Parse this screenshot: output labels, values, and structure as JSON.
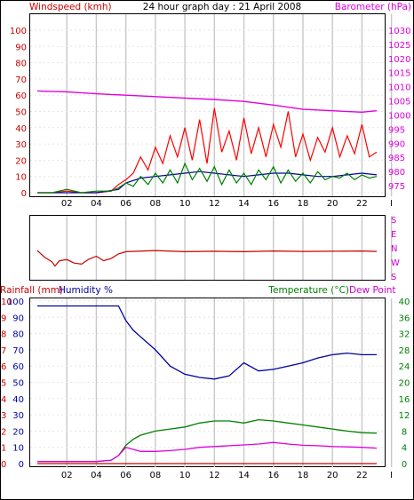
{
  "title": "24 hour graph day : 21 April 2008",
  "colors": {
    "wind": "#ff0000",
    "gust": "#ff0000",
    "wind_avg": "#0000a0",
    "wind_green": "#008000",
    "barometer": "#e000e0",
    "direction": "#cc0000",
    "humidity": "#0000a0",
    "temperature": "#008000",
    "dewpoint": "#e000e0",
    "rainfall": "#cc0000",
    "grid": "#c8c8c8",
    "frame": "#000000"
  },
  "x_tick_labels": [
    "02",
    "04",
    "06",
    "08",
    "10",
    "12",
    "14",
    "16",
    "18",
    "20",
    "22",
    "I"
  ],
  "panels": {
    "wind": {
      "left_label": "Windspeed (kmh)",
      "right_label": "Barometer (hPa)",
      "left_ticks": [
        "100",
        "90",
        "80",
        "70",
        "60",
        "50",
        "40",
        "30",
        "20",
        "10",
        "0"
      ],
      "right_ticks": [
        "1030",
        "1025",
        "1020",
        "1015",
        "1010",
        "1005",
        "1000",
        "995",
        "990",
        "985",
        "980",
        "975"
      ]
    },
    "direction": {
      "right_ticks": [
        "S",
        "E",
        "N",
        "W",
        "S"
      ]
    },
    "temp": {
      "left_label_1": "Rainfall (mm)",
      "left_label_2": "Humidity %",
      "right_label_1": "Temperature (°C)",
      "right_label_2": "Dew Point",
      "rain_ticks": [
        "10",
        "9",
        "8",
        "7",
        "6",
        "5",
        "4",
        "3",
        "2",
        "1",
        "0"
      ],
      "hum_ticks": [
        "100",
        "90",
        "80",
        "70",
        "60",
        "50",
        "40",
        "30",
        "20",
        "10",
        "0"
      ],
      "temp_ticks": [
        "40",
        "36",
        "32",
        "28",
        "24",
        "20",
        "16",
        "12",
        "8",
        "4",
        "0"
      ]
    }
  },
  "chart_data": [
    {
      "type": "line",
      "title": "24 hour graph day : 21 April 2008",
      "xlabel": "",
      "ylabel": "Windspeed (kmh)",
      "y2label": "Barometer (hPa)",
      "xlim": [
        0,
        24
      ],
      "ylim": [
        0,
        100
      ],
      "y2lim": [
        972.5,
        1030
      ],
      "grid": true,
      "series": [
        {
          "name": "Windspeed (kmh)",
          "axis": "left",
          "x": [
            0,
            1,
            2,
            3,
            4,
            5,
            5.5,
            6,
            6.5,
            7,
            7.5,
            8,
            8.5,
            9,
            9.5,
            10,
            10.5,
            11,
            11.5,
            12,
            12.5,
            13,
            13.5,
            14,
            14.5,
            15,
            15.5,
            16,
            16.5,
            17,
            17.5,
            18,
            18.5,
            19,
            19.5,
            20,
            20.5,
            21,
            21.5,
            22,
            22.5,
            23
          ],
          "y": [
            0,
            0,
            1,
            0,
            0,
            1,
            5,
            8,
            12,
            22,
            14,
            28,
            18,
            35,
            22,
            40,
            20,
            45,
            18,
            52,
            25,
            38,
            20,
            46,
            24,
            40,
            22,
            42,
            28,
            50,
            22,
            36,
            20,
            34,
            25,
            40,
            22,
            35,
            24,
            42,
            22,
            25
          ]
        },
        {
          "name": "Average speed",
          "axis": "left",
          "x": [
            0,
            2,
            4,
            5.5,
            6,
            7,
            8,
            9,
            10,
            11,
            12,
            13,
            14,
            15,
            16,
            17,
            18,
            19,
            20,
            21,
            22,
            23
          ],
          "y": [
            0,
            0,
            0,
            2,
            6,
            9,
            10,
            11,
            12,
            13,
            12,
            11,
            10,
            11,
            12,
            12,
            11,
            10,
            10,
            11,
            12,
            11
          ]
        },
        {
          "name": "Speed",
          "axis": "left",
          "x": [
            0,
            1,
            2,
            3,
            4,
            5,
            5.5,
            6,
            6.5,
            7,
            7.5,
            8,
            8.5,
            9,
            9.5,
            10,
            10.5,
            11,
            11.5,
            12,
            12.5,
            13,
            13.5,
            14,
            14.5,
            15,
            15.5,
            16,
            16.5,
            17,
            17.5,
            18,
            18.5,
            19,
            19.5,
            20,
            20.5,
            21,
            21.5,
            22,
            22.5,
            23
          ],
          "y": [
            0,
            0,
            2,
            0,
            1,
            1,
            3,
            6,
            4,
            10,
            5,
            12,
            6,
            14,
            6,
            18,
            8,
            15,
            7,
            16,
            5,
            14,
            6,
            12,
            5,
            14,
            8,
            16,
            6,
            14,
            7,
            12,
            6,
            13,
            8,
            10,
            9,
            12,
            8,
            11,
            9,
            10
          ]
        },
        {
          "name": "Barometer (hPa)",
          "axis": "right",
          "x": [
            0,
            2,
            4,
            6,
            8,
            10,
            12,
            14,
            16,
            18,
            20,
            22,
            23
          ],
          "y": [
            1008.5,
            1008.2,
            1007.5,
            1007,
            1006.5,
            1006,
            1005.5,
            1004.8,
            1003.5,
            1002,
            1001.5,
            1001,
            1001.5
          ]
        }
      ]
    },
    {
      "type": "line",
      "xlabel": "",
      "ylabel": "",
      "y_categories": [
        "S",
        "E",
        "N",
        "W",
        "S"
      ],
      "xlim": [
        0,
        24
      ],
      "series": [
        {
          "name": "Wind direction",
          "x": [
            0,
            0.5,
            1,
            1.2,
            1.5,
            2,
            2.5,
            3,
            3.5,
            4,
            4.5,
            5,
            5.5,
            6,
            8,
            10,
            12,
            14,
            16,
            18,
            20,
            22,
            23
          ],
          "y": [
            200,
            230,
            250,
            268,
            245,
            240,
            255,
            260,
            238,
            225,
            245,
            235,
            215,
            205,
            200,
            205,
            203,
            205,
            202,
            204,
            203,
            202,
            204
          ]
        }
      ]
    },
    {
      "type": "line",
      "xlabel": "",
      "ylabel": "Humidity %",
      "y2label": "Temperature (°C)",
      "xlim": [
        0,
        24
      ],
      "ylim": [
        0,
        100
      ],
      "y2lim": [
        0,
        40
      ],
      "grid": true,
      "series": [
        {
          "name": "Humidity %",
          "axis": "left",
          "x": [
            0,
            2,
            4,
            5.5,
            6,
            6.5,
            7,
            8,
            9,
            10,
            11,
            12,
            13,
            14,
            15,
            16,
            17,
            18,
            19,
            20,
            21,
            22,
            23
          ],
          "y": [
            97,
            97,
            97,
            97,
            88,
            82,
            78,
            70,
            60,
            55,
            53,
            52,
            54,
            62,
            57,
            58,
            60,
            62,
            65,
            67,
            68,
            67,
            67
          ]
        },
        {
          "name": "Temperature (°C)",
          "axis": "right",
          "x": [
            0,
            2,
            4,
            5,
            5.5,
            6,
            6.5,
            7,
            8,
            9,
            10,
            11,
            12,
            13,
            14,
            15,
            16,
            17,
            18,
            19,
            20,
            21,
            22,
            23
          ],
          "y": [
            0.5,
            0.5,
            0.5,
            0.8,
            2,
            4.5,
            6,
            7,
            8,
            8.5,
            9,
            10,
            10.5,
            10.5,
            10,
            10.8,
            10.5,
            10,
            9.5,
            9,
            8.5,
            8,
            7.6,
            7.5
          ]
        },
        {
          "name": "Dew Point",
          "axis": "right",
          "x": [
            0,
            2,
            4,
            5,
            5.5,
            6,
            6.5,
            7,
            8,
            9,
            10,
            11,
            12,
            13,
            14,
            15,
            16,
            17,
            18,
            19,
            20,
            21,
            22,
            23
          ],
          "y": [
            0.5,
            0.5,
            0.5,
            0.8,
            2,
            4,
            3.5,
            3,
            3,
            3.2,
            3.5,
            4,
            4.2,
            4.4,
            4.6,
            4.8,
            5.2,
            4.8,
            4.5,
            4.4,
            4.2,
            4.1,
            4.0,
            3.8
          ]
        },
        {
          "name": "Rainfall (mm)",
          "axis": "left",
          "x": [
            0,
            23
          ],
          "y": [
            0,
            0
          ]
        }
      ]
    }
  ]
}
